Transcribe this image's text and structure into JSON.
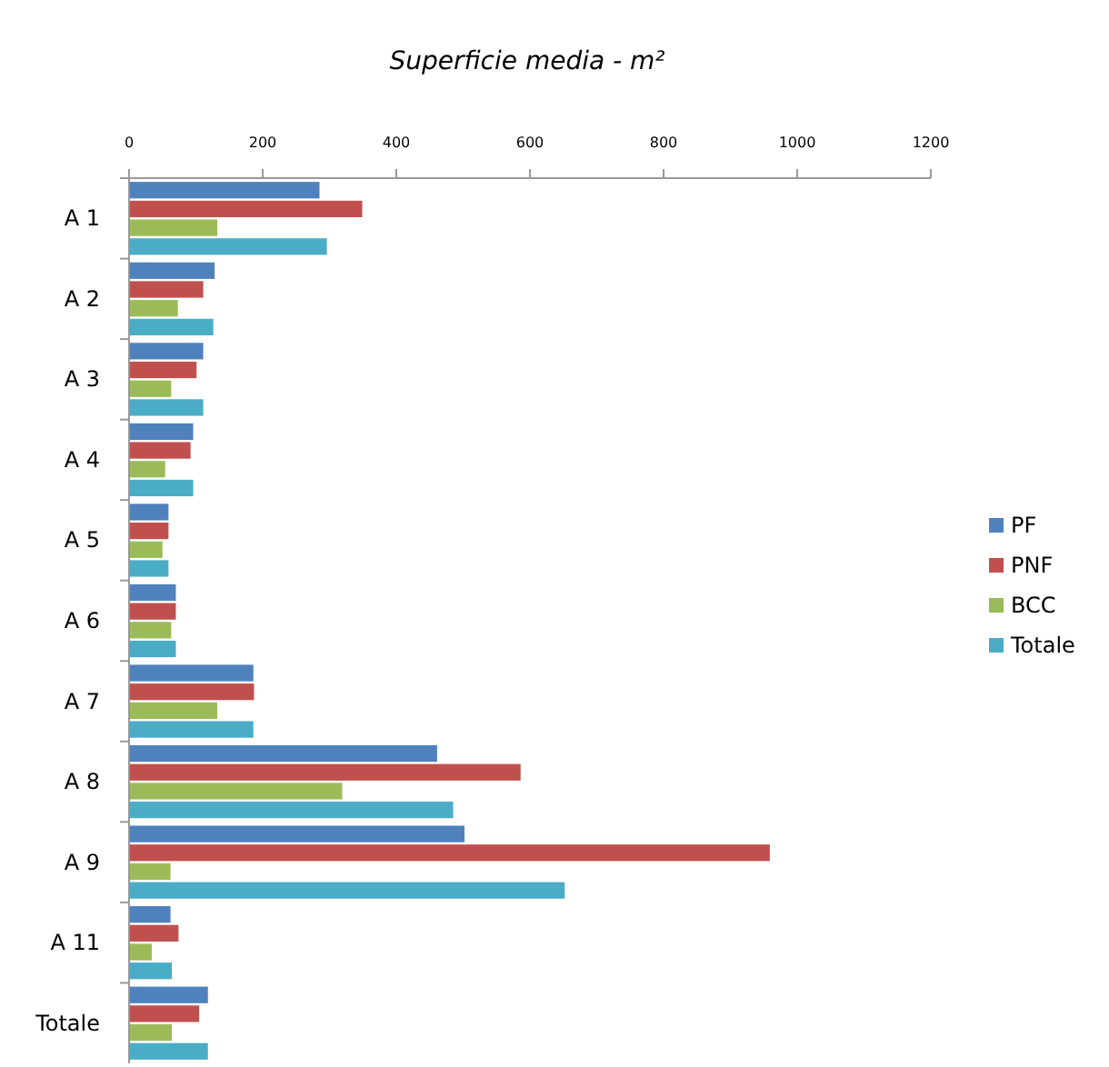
{
  "chart_data": {
    "type": "bar",
    "orientation": "horizontal",
    "title": "Superficie media - m²",
    "categories": [
      "A 1",
      "A 2",
      "A 3",
      "A 4",
      "A 5",
      "A 6",
      "A 7",
      "A 8",
      "A 9",
      "A 11",
      "Totale"
    ],
    "series": [
      {
        "name": "PF",
        "color": "#4f81bd",
        "values": [
          285,
          128,
          111,
          96,
          59,
          70,
          186,
          461,
          502,
          62,
          118
        ]
      },
      {
        "name": "PNF",
        "color": "#c0504d",
        "values": [
          349,
          111,
          101,
          92,
          59,
          70,
          187,
          586,
          959,
          74,
          105
        ]
      },
      {
        "name": "BCC",
        "color": "#9bbb59",
        "values": [
          132,
          73,
          63,
          54,
          50,
          63,
          132,
          319,
          62,
          34,
          64
        ]
      },
      {
        "name": "Totale",
        "color": "#4bacc6",
        "values": [
          296,
          126,
          111,
          96,
          59,
          70,
          186,
          485,
          652,
          64,
          118
        ]
      }
    ],
    "xlim": [
      0,
      1200
    ],
    "xticks": [
      0,
      200,
      400,
      600,
      800,
      1000,
      1200
    ],
    "grid": false,
    "legend": "right"
  }
}
